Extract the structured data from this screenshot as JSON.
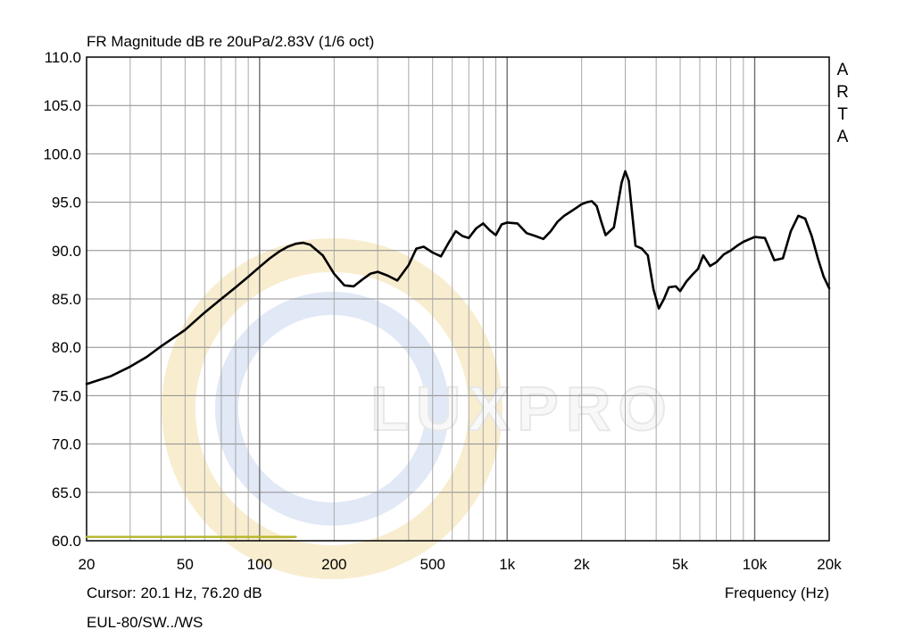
{
  "chart_data": {
    "type": "line",
    "title": "FR Magnitude dB re 20uPa/2.83V (1/6 oct)",
    "xlabel": "Frequency (Hz)",
    "ylabel": "",
    "xscale": "log",
    "xlim": [
      20,
      20000
    ],
    "ylim": [
      60,
      110
    ],
    "grid": true,
    "yticks": [
      110,
      105,
      100,
      95,
      90,
      85,
      80,
      75,
      70,
      65,
      60
    ],
    "ytick_labels": [
      "110.0",
      "105.0",
      "100.0",
      "95.0",
      "90.0",
      "85.0",
      "80.0",
      "75.0",
      "70.0",
      "65.0",
      "60.0"
    ],
    "xticks": [
      20,
      50,
      100,
      200,
      500,
      1000,
      2000,
      5000,
      10000,
      20000
    ],
    "xtick_labels": [
      "20",
      "50",
      "100",
      "200",
      "500",
      "1k",
      "2k",
      "5k",
      "10k",
      "20k"
    ],
    "series": [
      {
        "color": "#000000",
        "x": [
          20,
          25,
          30,
          35,
          40,
          50,
          60,
          70,
          80,
          90,
          100,
          110,
          120,
          130,
          140,
          150,
          160,
          180,
          200,
          220,
          240,
          260,
          280,
          300,
          330,
          360,
          400,
          430,
          460,
          500,
          540,
          580,
          620,
          660,
          700,
          750,
          800,
          850,
          900,
          950,
          1000,
          1100,
          1200,
          1300,
          1400,
          1500,
          1600,
          1700,
          1800,
          1900,
          2000,
          2100,
          2200,
          2300,
          2400,
          2500,
          2700,
          2900,
          3000,
          3100,
          3300,
          3500,
          3700,
          3900,
          4100,
          4300,
          4500,
          4800,
          5000,
          5300,
          5600,
          5900,
          6200,
          6600,
          7000,
          7500,
          8000,
          8500,
          9000,
          10000,
          11000,
          12000,
          13000,
          14000,
          15000,
          16000,
          17000,
          18000,
          19000,
          20000
        ],
        "y": [
          76.2,
          77.0,
          78.0,
          79.0,
          80.1,
          81.8,
          83.6,
          85.0,
          86.2,
          87.3,
          88.3,
          89.2,
          89.9,
          90.4,
          90.7,
          90.8,
          90.6,
          89.5,
          87.6,
          86.4,
          86.3,
          87.0,
          87.6,
          87.8,
          87.4,
          86.9,
          88.5,
          90.2,
          90.4,
          89.8,
          89.4,
          90.8,
          92.0,
          91.5,
          91.3,
          92.3,
          92.8,
          92.1,
          91.6,
          92.7,
          92.9,
          92.8,
          91.8,
          91.5,
          91.2,
          92.0,
          93.0,
          93.6,
          94.0,
          94.4,
          94.8,
          95.0,
          95.1,
          94.6,
          93.0,
          91.6,
          92.4,
          97.0,
          98.2,
          97.2,
          90.5,
          90.2,
          89.5,
          86.0,
          84.0,
          85.0,
          86.2,
          86.3,
          85.8,
          86.8,
          87.5,
          88.1,
          89.5,
          88.4,
          88.8,
          89.6,
          90.0,
          90.5,
          90.9,
          91.4,
          91.3,
          89.0,
          89.2,
          92.0,
          93.6,
          93.3,
          91.5,
          89.2,
          87.3,
          86.1
        ]
      },
      {
        "color": "#b5b52a",
        "x": [
          20,
          140
        ],
        "y": [
          60.4,
          60.4
        ]
      }
    ],
    "watermark": "LUXPRO",
    "side_label": "ARTA",
    "annotations": {
      "cursor": "Cursor: 20.1 Hz, 76.20 dB",
      "device": "EUL-80/SW../WS"
    }
  }
}
